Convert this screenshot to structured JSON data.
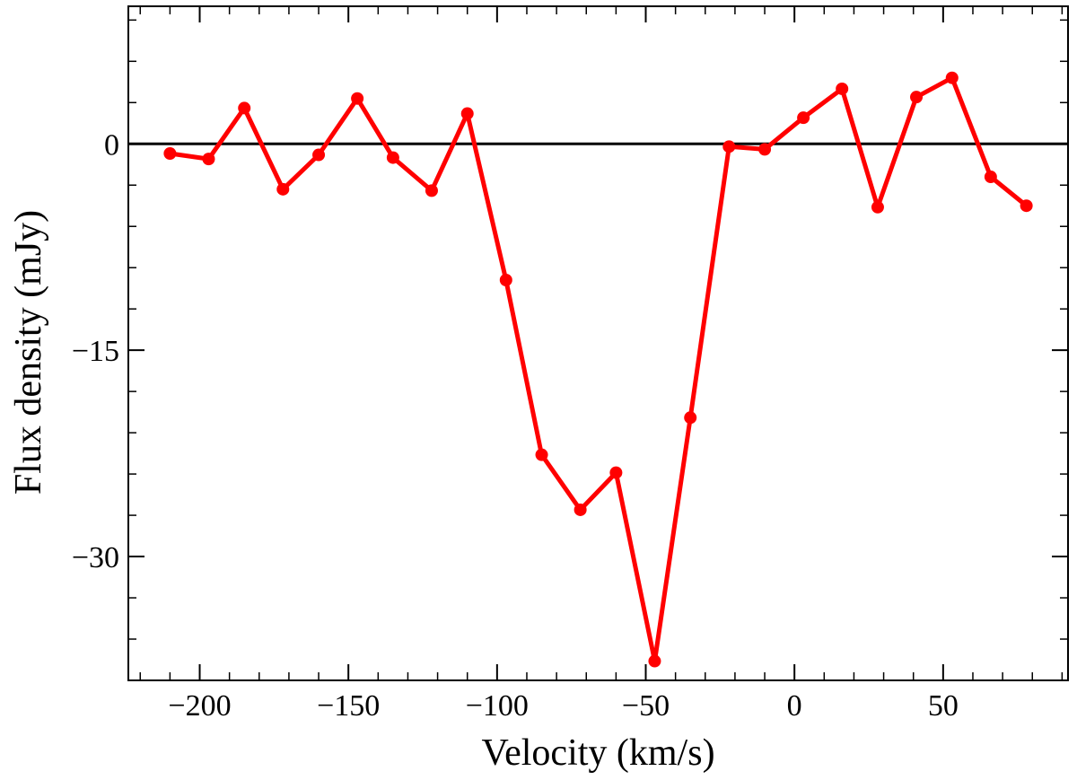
{
  "chart_data": {
    "type": "line",
    "xlabel": "Velocity (km/s)",
    "ylabel": "Flux density (mJy)",
    "xlim": [
      -224,
      92
    ],
    "ylim": [
      -39,
      10
    ],
    "xticks": [
      -200,
      -150,
      -100,
      -50,
      0,
      50
    ],
    "xtick_labels": [
      "−200",
      "−150",
      "−100",
      "−50",
      "0",
      "50"
    ],
    "yticks": [
      0,
      -15,
      -30
    ],
    "ytick_labels": [
      "0",
      "−15",
      "−30"
    ],
    "x_minor_step": 10,
    "y_minor_step": 3,
    "reference_line_y": 0,
    "grid": false,
    "legend": "none",
    "colors": {
      "series": "#ff0000",
      "axis": "#000000",
      "zero_line": "#000000"
    },
    "series": [
      {
        "x": [
          -210,
          -197,
          -185,
          -172,
          -160,
          -147,
          -135,
          -122,
          -110,
          -97,
          -85,
          -72,
          -60,
          -47,
          -35,
          -22,
          -10,
          3,
          16,
          28,
          41,
          53,
          66,
          78
        ],
        "y": [
          -0.7,
          -1.1,
          2.6,
          -3.3,
          -0.8,
          3.3,
          -1.0,
          -3.4,
          2.2,
          -9.9,
          -22.6,
          -26.6,
          -23.9,
          -37.6,
          -19.9,
          -0.2,
          -0.4,
          1.9,
          4.0,
          -4.6,
          3.4,
          4.8,
          -2.4,
          -4.5
        ]
      }
    ]
  }
}
